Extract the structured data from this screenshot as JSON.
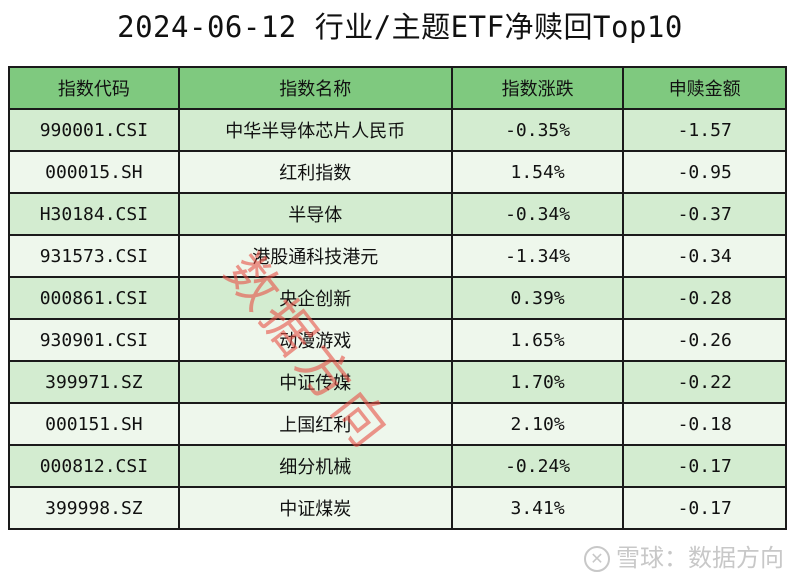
{
  "title": "2024-06-12 行业/主题ETF净赎回Top10",
  "table": {
    "headers": [
      "指数代码",
      "指数名称",
      "指数涨跌",
      "申赎金额"
    ],
    "rows": [
      [
        "990001.CSI",
        "中华半导体芯片人民币",
        "-0.35%",
        "-1.57"
      ],
      [
        "000015.SH",
        "红利指数",
        "1.54%",
        "-0.95"
      ],
      [
        "H30184.CSI",
        "半导体",
        "-0.34%",
        "-0.37"
      ],
      [
        "931573.CSI",
        "港股通科技港元",
        "-1.34%",
        "-0.34"
      ],
      [
        "000861.CSI",
        "央企创新",
        "0.39%",
        "-0.28"
      ],
      [
        "930901.CSI",
        "动漫游戏",
        "1.65%",
        "-0.26"
      ],
      [
        "399971.SZ",
        "中证传媒",
        "1.70%",
        "-0.22"
      ],
      [
        "000151.SH",
        "上国红利",
        "2.10%",
        "-0.18"
      ],
      [
        "000812.CSI",
        "细分机械",
        "-0.24%",
        "-0.17"
      ],
      [
        "399998.SZ",
        "中证煤炭",
        "3.41%",
        "-0.17"
      ]
    ]
  },
  "watermark": "数据方向",
  "brand": {
    "logo": "✕",
    "text": "雪球：数据方向"
  },
  "colors": {
    "header_bg": "#7fc97f",
    "row_odd": "#d3ecd0",
    "row_even": "#eef7ec",
    "watermark": "#e85046"
  }
}
